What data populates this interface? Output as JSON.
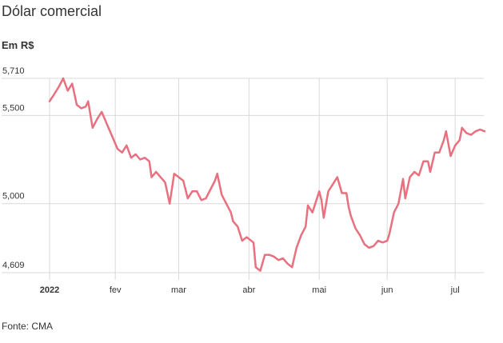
{
  "title": "Dólar comercial",
  "unit": "Em R$",
  "source": "Fonte: CMA",
  "colors": {
    "line": "#e8707f",
    "grid": "#d9d9d9",
    "text": "#333333"
  },
  "chart_data": {
    "type": "line",
    "title": "Dólar comercial",
    "ylabel": "Em R$",
    "xlabel": "",
    "ylim": [
      4.609,
      5.71
    ],
    "yticks": [
      4.609,
      5.0,
      5.5,
      5.71
    ],
    "ytick_labels": [
      "4,609",
      "5,000",
      "5,500",
      "5,710"
    ],
    "xticks": [
      {
        "date": "2022-01-03",
        "label": "2022",
        "bold": true
      },
      {
        "date": "2022-02-01",
        "label": "fev",
        "bold": false
      },
      {
        "date": "2022-03-01",
        "label": "mar",
        "bold": false
      },
      {
        "date": "2022-04-01",
        "label": "abr",
        "bold": false
      },
      {
        "date": "2022-05-02",
        "label": "mai",
        "bold": false
      },
      {
        "date": "2022-06-01",
        "label": "jun",
        "bold": false
      },
      {
        "date": "2022-07-01",
        "label": "jul",
        "bold": false
      }
    ],
    "grid": true,
    "series": [
      {
        "points": [
          [
            "2022-01-03",
            5.58
          ],
          [
            "2022-01-05",
            5.62
          ],
          [
            "2022-01-07",
            5.66
          ],
          [
            "2022-01-09",
            5.71
          ],
          [
            "2022-01-11",
            5.64
          ],
          [
            "2022-01-13",
            5.68
          ],
          [
            "2022-01-15",
            5.56
          ],
          [
            "2022-01-17",
            5.54
          ],
          [
            "2022-01-19",
            5.55
          ],
          [
            "2022-01-20",
            5.58
          ],
          [
            "2022-01-22",
            5.43
          ],
          [
            "2022-01-24",
            5.48
          ],
          [
            "2022-01-26",
            5.52
          ],
          [
            "2022-01-28",
            5.46
          ],
          [
            "2022-01-30",
            5.4
          ],
          [
            "2022-02-02",
            5.31
          ],
          [
            "2022-02-04",
            5.29
          ],
          [
            "2022-02-06",
            5.33
          ],
          [
            "2022-02-08",
            5.26
          ],
          [
            "2022-02-10",
            5.28
          ],
          [
            "2022-02-12",
            5.25
          ],
          [
            "2022-02-14",
            5.26
          ],
          [
            "2022-02-16",
            5.24
          ],
          [
            "2022-02-17",
            5.15
          ],
          [
            "2022-02-19",
            5.18
          ],
          [
            "2022-02-21",
            5.15
          ],
          [
            "2022-02-23",
            5.12
          ],
          [
            "2022-02-25",
            5.0
          ],
          [
            "2022-02-27",
            5.17
          ],
          [
            "2022-03-01",
            5.15
          ],
          [
            "2022-03-03",
            5.13
          ],
          [
            "2022-03-05",
            5.03
          ],
          [
            "2022-03-07",
            5.07
          ],
          [
            "2022-03-09",
            5.07
          ],
          [
            "2022-03-11",
            5.02
          ],
          [
            "2022-03-13",
            5.03
          ],
          [
            "2022-03-15",
            5.08
          ],
          [
            "2022-03-17",
            5.13
          ],
          [
            "2022-03-18",
            5.17
          ],
          [
            "2022-03-20",
            5.05
          ],
          [
            "2022-03-22",
            5.0
          ],
          [
            "2022-03-24",
            4.95
          ],
          [
            "2022-03-25",
            4.9
          ],
          [
            "2022-03-27",
            4.87
          ],
          [
            "2022-03-29",
            4.79
          ],
          [
            "2022-03-31",
            4.81
          ],
          [
            "2022-04-01",
            4.8
          ],
          [
            "2022-04-03",
            4.78
          ],
          [
            "2022-04-04",
            4.64
          ],
          [
            "2022-04-06",
            4.62
          ],
          [
            "2022-04-08",
            4.71
          ],
          [
            "2022-04-10",
            4.71
          ],
          [
            "2022-04-12",
            4.7
          ],
          [
            "2022-04-14",
            4.68
          ],
          [
            "2022-04-16",
            4.69
          ],
          [
            "2022-04-18",
            4.66
          ],
          [
            "2022-04-20",
            4.64
          ],
          [
            "2022-04-22",
            4.75
          ],
          [
            "2022-04-24",
            4.82
          ],
          [
            "2022-04-26",
            4.87
          ],
          [
            "2022-04-27",
            4.99
          ],
          [
            "2022-04-29",
            4.95
          ],
          [
            "2022-05-02",
            5.07
          ],
          [
            "2022-05-03",
            5.02
          ],
          [
            "2022-05-04",
            4.92
          ],
          [
            "2022-05-06",
            5.07
          ],
          [
            "2022-05-08",
            5.11
          ],
          [
            "2022-05-10",
            5.15
          ],
          [
            "2022-05-12",
            5.06
          ],
          [
            "2022-05-14",
            5.06
          ],
          [
            "2022-05-15",
            4.98
          ],
          [
            "2022-05-16",
            4.93
          ],
          [
            "2022-05-18",
            4.86
          ],
          [
            "2022-05-20",
            4.82
          ],
          [
            "2022-05-22",
            4.77
          ],
          [
            "2022-05-24",
            4.75
          ],
          [
            "2022-05-26",
            4.76
          ],
          [
            "2022-05-28",
            4.79
          ],
          [
            "2022-05-30",
            4.78
          ],
          [
            "2022-06-01",
            4.79
          ],
          [
            "2022-06-02",
            4.83
          ],
          [
            "2022-06-04",
            4.95
          ],
          [
            "2022-06-06",
            5.0
          ],
          [
            "2022-06-08",
            5.14
          ],
          [
            "2022-06-09",
            5.03
          ],
          [
            "2022-06-11",
            5.15
          ],
          [
            "2022-06-13",
            5.18
          ],
          [
            "2022-06-15",
            5.16
          ],
          [
            "2022-06-17",
            5.24
          ],
          [
            "2022-06-19",
            5.24
          ],
          [
            "2022-06-20",
            5.18
          ],
          [
            "2022-06-22",
            5.29
          ],
          [
            "2022-06-24",
            5.29
          ],
          [
            "2022-06-26",
            5.36
          ],
          [
            "2022-06-27",
            5.41
          ],
          [
            "2022-06-29",
            5.27
          ],
          [
            "2022-07-01",
            5.33
          ],
          [
            "2022-07-03",
            5.36
          ],
          [
            "2022-07-04",
            5.43
          ],
          [
            "2022-07-06",
            5.4
          ],
          [
            "2022-07-08",
            5.39
          ],
          [
            "2022-07-10",
            5.41
          ],
          [
            "2022-07-12",
            5.42
          ],
          [
            "2022-07-14",
            5.41
          ]
        ]
      }
    ]
  }
}
